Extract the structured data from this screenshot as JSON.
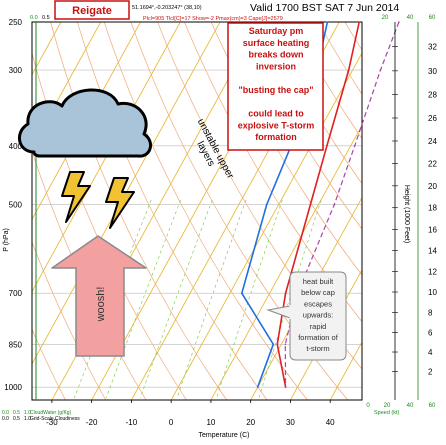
{
  "header": {
    "location": "Reigate",
    "coords": "51.1694°,-0.203247° (38,10)",
    "valid": "Valid 1700 BST SAT 7 Jun 2014",
    "indices": "Plcl=905 Tlcl[C]=17 Show=-2 Pmax(cm)=3 Cape[J]=2579"
  },
  "chart_data": {
    "type": "line",
    "xlabel": "Temperature (C)",
    "ylabel": "P (hPa)",
    "ylabel_right": "Height (1000 Feet)",
    "x_ticks": [
      -30,
      -20,
      -10,
      0,
      10,
      20,
      30,
      40
    ],
    "p_ticks": [
      250,
      300,
      400,
      500,
      700,
      850,
      1000
    ],
    "height_ticks": [
      2,
      4,
      6,
      8,
      10,
      12,
      14,
      16,
      18,
      20,
      22,
      24,
      26,
      28,
      30,
      32
    ],
    "xlim": [
      -35,
      48
    ],
    "plim": [
      250,
      1050
    ],
    "series": [
      {
        "name": "",
        "color": "#e02020",
        "role": "temperature",
        "points": [
          [
            -5,
            250
          ],
          [
            -1,
            300
          ],
          [
            4,
            400
          ],
          [
            8,
            500
          ],
          [
            14,
            700
          ],
          [
            19,
            850
          ],
          [
            27,
            1000
          ]
        ]
      },
      {
        "name": "",
        "color": "#1f6fe0",
        "role": "dewpoint",
        "points": [
          [
            -13,
            250
          ],
          [
            -9,
            300
          ],
          [
            -5,
            400
          ],
          [
            -3,
            500
          ],
          [
            3,
            700
          ],
          [
            18,
            850
          ],
          [
            20,
            1000
          ]
        ]
      },
      {
        "name": "",
        "color": "#aa44aa",
        "role": "parcel",
        "points": [
          [
            5,
            250
          ],
          [
            7,
            300
          ],
          [
            11,
            400
          ],
          [
            14,
            500
          ],
          [
            17,
            700
          ],
          [
            21,
            850
          ],
          [
            27,
            1000
          ]
        ]
      }
    ],
    "wind_scale": {
      "top_labels": [
        "20",
        "40",
        "60"
      ],
      "bottom_labels": [
        "0",
        "20",
        "40",
        "60"
      ],
      "label": "Speed (kt)"
    },
    "cloud_scale": {
      "top_labels": [
        "0.0",
        "0.5",
        "1.0"
      ],
      "bottom_labels_row1": [
        "0.0",
        "0.5",
        "1.0"
      ],
      "bottom_labels_row2": [
        "0.0",
        "0.5",
        "1.0"
      ],
      "label_row1": "CloudWater (g/Kg)",
      "label_row2": "Grid-Scale Cloudiness"
    }
  },
  "annotations": {
    "heating": [
      "Saturday pm",
      "surface heating",
      "breaks down",
      "inversion",
      "",
      "\"busting the cap\"",
      "",
      "could lead to",
      "explosive T-storm",
      "formation"
    ],
    "unstable": [
      "unstable upper",
      "layers"
    ],
    "whoosh": "woosh!",
    "heat_built": [
      "heat built",
      "below cap",
      "escapes",
      "upwards:",
      "rapid",
      "formation of",
      "t-storm"
    ]
  },
  "colors": {
    "isotherm": "#e8b830",
    "dry_adiabat": "#f0a878",
    "mixing_ratio": "#88cc55",
    "height_axis": "#1b8a1b",
    "annotation_red": "#c81010"
  }
}
